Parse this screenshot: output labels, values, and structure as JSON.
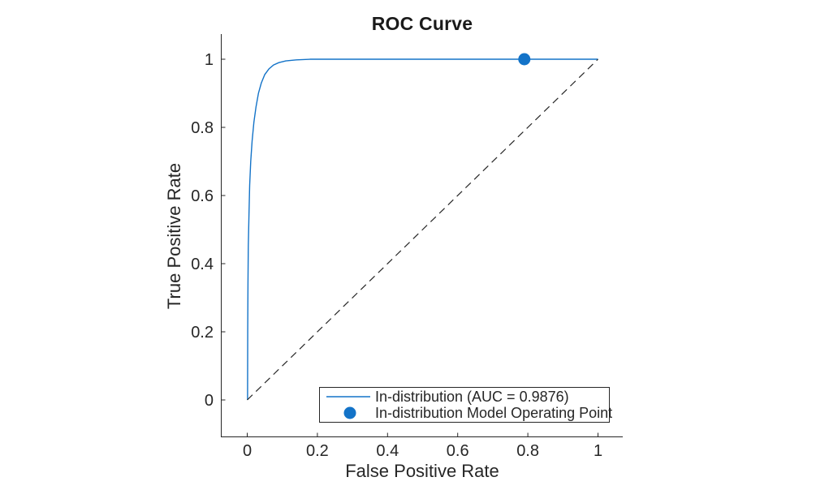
{
  "colors": {
    "accent_blue": "#1373c8",
    "axis": "#262626",
    "text": "#262626",
    "title_text": "#1a1a1a",
    "reference_line": "#262626",
    "background": "#ffffff"
  },
  "chart_data": {
    "type": "line",
    "title": "ROC Curve",
    "xlabel": "False Positive Rate",
    "ylabel": "True Positive Rate",
    "xlim": [
      0,
      1
    ],
    "ylim": [
      0,
      1
    ],
    "xticks": [
      0,
      0.2,
      0.4,
      0.6,
      0.8,
      1
    ],
    "yticks": [
      0,
      0.2,
      0.4,
      0.6,
      0.8,
      1
    ],
    "xtick_labels": [
      "0",
      "0.2",
      "0.4",
      "0.6",
      "0.8",
      "1"
    ],
    "ytick_labels": [
      "0",
      "0.2",
      "0.4",
      "0.6",
      "0.8",
      "1"
    ],
    "grid": false,
    "legend_position": "south-east-inside",
    "auc": 0.9876,
    "operating_point": [
      0.79,
      1.0
    ],
    "series": [
      {
        "name": "In-distribution (AUC = 0.9876)",
        "style": "line",
        "color": "#1373c8",
        "width": 1.4,
        "points": [
          [
            0.001,
            0
          ],
          [
            0.0015,
            0.2
          ],
          [
            0.002,
            0.34
          ],
          [
            0.003,
            0.45
          ],
          [
            0.005,
            0.55
          ],
          [
            0.007,
            0.63
          ],
          [
            0.01,
            0.7
          ],
          [
            0.014,
            0.76
          ],
          [
            0.019,
            0.815
          ],
          [
            0.025,
            0.86
          ],
          [
            0.032,
            0.9
          ],
          [
            0.04,
            0.93
          ],
          [
            0.05,
            0.955
          ],
          [
            0.062,
            0.972
          ],
          [
            0.075,
            0.983
          ],
          [
            0.09,
            0.99
          ],
          [
            0.11,
            0.995
          ],
          [
            0.14,
            0.998
          ],
          [
            0.18,
            1.0
          ],
          [
            1.0,
            1.0
          ]
        ]
      },
      {
        "name": "random-classifier-reference",
        "style": "dashed",
        "color": "#262626",
        "width": 1.2,
        "points": [
          [
            0,
            0
          ],
          [
            1,
            1
          ]
        ]
      },
      {
        "name": "In-distribution Model Operating Point",
        "style": "marker",
        "color": "#1373c8",
        "radius": 7.5,
        "points": [
          [
            0.79,
            1.0
          ]
        ]
      }
    ],
    "legend": [
      {
        "swatch": "line",
        "label": "In-distribution (AUC = 0.9876)"
      },
      {
        "swatch": "dot",
        "label": "In-distribution Model Operating Point"
      }
    ]
  }
}
